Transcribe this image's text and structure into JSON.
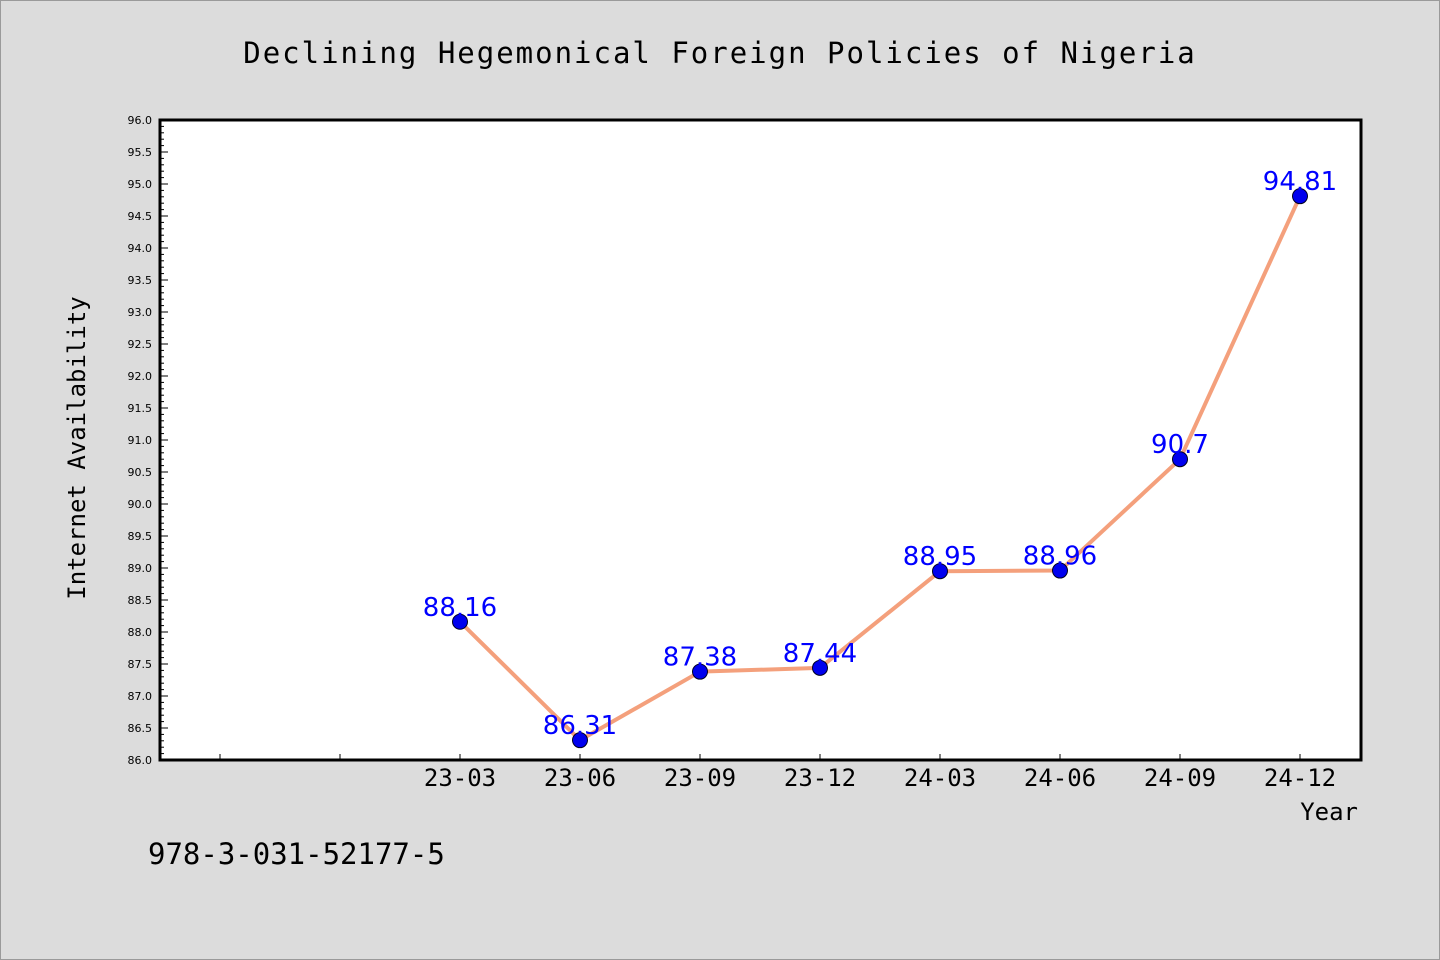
{
  "chart_data": {
    "type": "line",
    "title": "Declining Hegemonical Foreign Policies of Nigeria",
    "xlabel": "Year",
    "ylabel": "Internet Availability",
    "categories": [
      "23-03",
      "23-06",
      "23-09",
      "23-12",
      "24-03",
      "24-06",
      "24-09",
      "24-12"
    ],
    "x_tick_labels": [
      "23-03",
      "23-06",
      "23-09",
      "23-12",
      "24-03",
      "24-06",
      "24-09",
      "24-12"
    ],
    "series": [
      {
        "values": [
          88.16,
          86.31,
          87.38,
          87.44,
          88.95,
          88.96,
          90.7,
          94.81
        ],
        "line_color": "#f4a07c",
        "marker_color": "#0000ee"
      }
    ],
    "data_labels": [
      "88.16",
      "86.31",
      "87.38",
      "87.44",
      "88.95",
      "88.96",
      "90.7",
      "94.81"
    ],
    "ylim": [
      86.0,
      96.0
    ],
    "y_ticks": [
      "86.0",
      "86.5",
      "87.0",
      "87.5",
      "88.0",
      "88.5",
      "89.0",
      "89.5",
      "90.0",
      "90.5",
      "91.0",
      "91.5",
      "92.0",
      "92.5",
      "93.0",
      "93.5",
      "94.0",
      "94.5",
      "95.0",
      "95.5",
      "96.0"
    ],
    "grid": false,
    "legend": "none",
    "label_color": "#0000ff"
  },
  "footer_text": "978-3-031-52177-5"
}
